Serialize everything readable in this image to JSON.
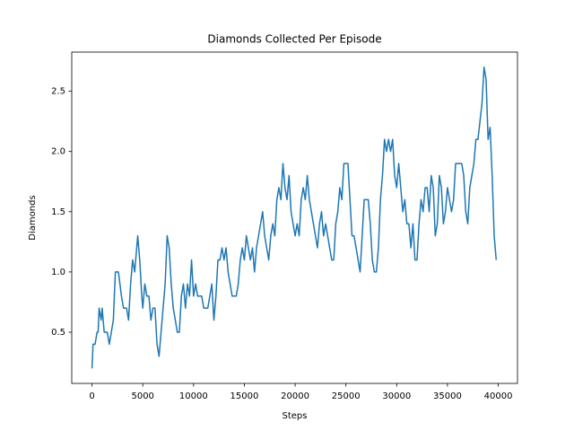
{
  "chart_data": {
    "type": "line",
    "title": "Diamonds Collected Per Episode",
    "x_label": "Steps",
    "y_label": "Diamonds",
    "x": [
      0,
      100,
      300,
      500,
      600,
      700,
      900,
      1000,
      1200,
      1500,
      1700,
      1900,
      2100,
      2300,
      2600,
      2900,
      3100,
      3400,
      3600,
      3800,
      4000,
      4200,
      4400,
      4500,
      4700,
      4900,
      5000,
      5200,
      5400,
      5600,
      5800,
      6000,
      6200,
      6400,
      6600,
      6800,
      7000,
      7200,
      7400,
      7600,
      7800,
      8000,
      8200,
      8400,
      8600,
      8800,
      9000,
      9200,
      9400,
      9600,
      9800,
      10000,
      10200,
      10400,
      10800,
      11000,
      11400,
      11600,
      11800,
      12000,
      12200,
      12400,
      12600,
      12800,
      13000,
      13200,
      13400,
      13600,
      13800,
      14200,
      14400,
      14600,
      14800,
      15000,
      15200,
      15400,
      15600,
      15800,
      16000,
      16200,
      16400,
      16600,
      16800,
      17000,
      17200,
      17400,
      17600,
      17800,
      18000,
      18200,
      18400,
      18600,
      18800,
      19000,
      19200,
      19400,
      19600,
      19800,
      20000,
      20200,
      20400,
      20600,
      20800,
      21000,
      21200,
      21400,
      21600,
      21800,
      22000,
      22200,
      22400,
      22600,
      22800,
      23000,
      23200,
      23400,
      23600,
      23800,
      24000,
      24200,
      24400,
      24600,
      24800,
      25200,
      25400,
      25600,
      25800,
      26000,
      26200,
      26400,
      26600,
      26800,
      27200,
      27400,
      27600,
      27800,
      28000,
      28200,
      28400,
      28600,
      28800,
      29000,
      29200,
      29400,
      29600,
      29800,
      30000,
      30200,
      30400,
      30600,
      30800,
      31000,
      31200,
      31400,
      31600,
      31800,
      32000,
      32200,
      32400,
      32600,
      32800,
      33000,
      33200,
      33400,
      33600,
      33800,
      34000,
      34200,
      34400,
      34600,
      34800,
      35000,
      35200,
      35400,
      35600,
      35800,
      36400,
      36600,
      36800,
      37000,
      37200,
      37400,
      37600,
      37800,
      38000,
      38400,
      38600,
      38800,
      39000,
      39200,
      39400,
      39600,
      39800
    ],
    "series": [
      {
        "name": "Diamonds",
        "color": "#1f77b4",
        "values": [
          0.2,
          0.4,
          0.4,
          0.5,
          0.5,
          0.7,
          0.6,
          0.7,
          0.5,
          0.5,
          0.4,
          0.5,
          0.6,
          1.0,
          1.0,
          0.8,
          0.7,
          0.7,
          0.6,
          0.9,
          1.1,
          1.0,
          1.2,
          1.3,
          1.1,
          0.8,
          0.7,
          0.9,
          0.8,
          0.8,
          0.6,
          0.7,
          0.7,
          0.4,
          0.3,
          0.5,
          0.7,
          0.9,
          1.3,
          1.2,
          0.9,
          0.7,
          0.6,
          0.5,
          0.5,
          0.8,
          0.9,
          0.7,
          0.9,
          0.8,
          1.1,
          0.8,
          0.9,
          0.8,
          0.8,
          0.7,
          0.7,
          0.8,
          0.9,
          0.6,
          0.8,
          1.1,
          1.1,
          1.2,
          1.1,
          1.2,
          1.0,
          0.9,
          0.8,
          0.8,
          0.9,
          1.1,
          1.2,
          1.1,
          1.3,
          1.2,
          1.1,
          1.2,
          1.0,
          1.2,
          1.3,
          1.4,
          1.5,
          1.3,
          1.2,
          1.1,
          1.3,
          1.4,
          1.3,
          1.6,
          1.7,
          1.6,
          1.9,
          1.7,
          1.6,
          1.8,
          1.5,
          1.4,
          1.3,
          1.4,
          1.3,
          1.6,
          1.7,
          1.6,
          1.8,
          1.6,
          1.5,
          1.4,
          1.3,
          1.2,
          1.4,
          1.5,
          1.3,
          1.4,
          1.3,
          1.2,
          1.1,
          1.1,
          1.4,
          1.5,
          1.7,
          1.6,
          1.9,
          1.9,
          1.6,
          1.3,
          1.3,
          1.2,
          1.1,
          1.0,
          1.3,
          1.6,
          1.6,
          1.4,
          1.1,
          1.0,
          1.0,
          1.2,
          1.6,
          1.8,
          2.1,
          2.0,
          2.1,
          2.0,
          2.1,
          1.8,
          1.7,
          1.9,
          1.7,
          1.5,
          1.6,
          1.4,
          1.4,
          1.2,
          1.4,
          1.1,
          1.1,
          1.4,
          1.6,
          1.5,
          1.7,
          1.7,
          1.5,
          1.8,
          1.7,
          1.3,
          1.4,
          1.8,
          1.7,
          1.4,
          1.5,
          1.7,
          1.6,
          1.5,
          1.6,
          1.9,
          1.9,
          1.8,
          1.5,
          1.4,
          1.7,
          1.8,
          1.9,
          2.1,
          2.1,
          2.4,
          2.7,
          2.6,
          2.1,
          2.2,
          1.8,
          1.3,
          1.1
        ]
      }
    ],
    "xlim": [
      -1995,
      41895
    ],
    "ylim": [
      0.075,
      2.825
    ],
    "xticks": [
      0,
      5000,
      10000,
      15000,
      20000,
      25000,
      30000,
      35000,
      40000
    ],
    "yticks": [
      {
        "value": 0.5,
        "label": "0.5"
      },
      {
        "value": 1,
        "label": "1.0"
      },
      {
        "value": 1.5,
        "label": "1.5"
      },
      {
        "value": 2,
        "label": "2.0"
      },
      {
        "value": 2.5,
        "label": "2.5"
      }
    ]
  }
}
